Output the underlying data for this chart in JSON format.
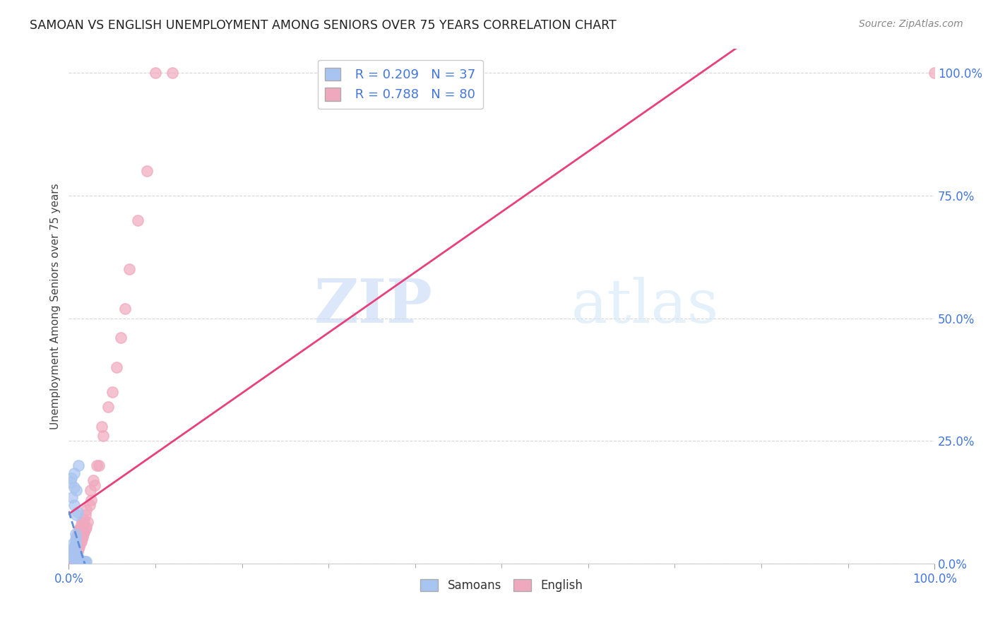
{
  "title": "SAMOAN VS ENGLISH UNEMPLOYMENT AMONG SENIORS OVER 75 YEARS CORRELATION CHART",
  "source": "Source: ZipAtlas.com",
  "ylabel": "Unemployment Among Seniors over 75 years",
  "legend_r_samoans": "R = 0.209",
  "legend_n_samoans": "N = 37",
  "legend_r_english": "R = 0.788",
  "legend_n_english": "N = 80",
  "legend_samoans_label": "Samoans",
  "legend_english_label": "English",
  "samoans_color": "#a8c4f0",
  "english_color": "#f0a8be",
  "trendline_samoans_color": "#6090d8",
  "trendline_english_color": "#e8407a",
  "watermark_zip_color": "#b8d4ee",
  "watermark_atlas_color": "#c8ddf5",
  "samoans_x": [
    0.002,
    0.003,
    0.004,
    0.004,
    0.005,
    0.005,
    0.005,
    0.005,
    0.005,
    0.006,
    0.006,
    0.006,
    0.006,
    0.006,
    0.007,
    0.007,
    0.007,
    0.007,
    0.008,
    0.008,
    0.008,
    0.009,
    0.009,
    0.01,
    0.01,
    0.01,
    0.011,
    0.012,
    0.012,
    0.013,
    0.014,
    0.015,
    0.016,
    0.017,
    0.018,
    0.019,
    0.02
  ],
  "samoans_y": [
    0.165,
    0.175,
    0.135,
    0.01,
    0.015,
    0.02,
    0.025,
    0.03,
    0.04,
    0.12,
    0.155,
    0.185,
    0.02,
    0.035,
    0.02,
    0.025,
    0.03,
    0.035,
    0.04,
    0.05,
    0.06,
    0.15,
    0.1,
    0.105,
    0.005,
    0.01,
    0.2,
    0.005,
    0.01,
    0.005,
    0.005,
    0.005,
    0.005,
    0.005,
    0.005,
    0.005,
    0.005
  ],
  "english_x": [
    0.002,
    0.003,
    0.003,
    0.004,
    0.004,
    0.004,
    0.005,
    0.005,
    0.005,
    0.005,
    0.006,
    0.006,
    0.006,
    0.006,
    0.006,
    0.007,
    0.007,
    0.007,
    0.007,
    0.008,
    0.008,
    0.008,
    0.008,
    0.009,
    0.009,
    0.009,
    0.009,
    0.01,
    0.01,
    0.01,
    0.01,
    0.01,
    0.011,
    0.011,
    0.011,
    0.011,
    0.012,
    0.012,
    0.012,
    0.012,
    0.013,
    0.013,
    0.013,
    0.014,
    0.014,
    0.014,
    0.015,
    0.015,
    0.015,
    0.016,
    0.016,
    0.017,
    0.017,
    0.018,
    0.018,
    0.019,
    0.019,
    0.02,
    0.02,
    0.022,
    0.024,
    0.025,
    0.026,
    0.028,
    0.03,
    0.032,
    0.035,
    0.038,
    0.04,
    0.045,
    0.05,
    0.055,
    0.06,
    0.065,
    0.07,
    0.08,
    0.09,
    0.1,
    0.12,
    1.0
  ],
  "english_y": [
    0.005,
    0.005,
    0.01,
    0.005,
    0.01,
    0.015,
    0.005,
    0.01,
    0.015,
    0.02,
    0.01,
    0.015,
    0.02,
    0.025,
    0.03,
    0.015,
    0.02,
    0.025,
    0.03,
    0.02,
    0.025,
    0.03,
    0.04,
    0.025,
    0.035,
    0.045,
    0.055,
    0.025,
    0.03,
    0.035,
    0.045,
    0.055,
    0.03,
    0.04,
    0.05,
    0.065,
    0.035,
    0.045,
    0.055,
    0.07,
    0.04,
    0.055,
    0.07,
    0.045,
    0.06,
    0.08,
    0.05,
    0.06,
    0.085,
    0.055,
    0.07,
    0.06,
    0.08,
    0.065,
    0.09,
    0.07,
    0.1,
    0.075,
    0.11,
    0.085,
    0.12,
    0.15,
    0.13,
    0.17,
    0.16,
    0.2,
    0.2,
    0.28,
    0.26,
    0.32,
    0.35,
    0.4,
    0.46,
    0.52,
    0.6,
    0.7,
    0.8,
    1.0,
    1.0,
    1.0
  ],
  "xlim": [
    0,
    1.0
  ],
  "ylim": [
    0,
    1.05
  ],
  "xticks": [
    0,
    1.0
  ],
  "yticks": [
    0,
    0.25,
    0.5,
    0.75,
    1.0
  ],
  "xtick_labels": [
    "0.0%",
    "100.0%"
  ],
  "ytick_labels": [
    "0.0%",
    "25.0%",
    "50.0%",
    "75.0%",
    "100.0%"
  ]
}
